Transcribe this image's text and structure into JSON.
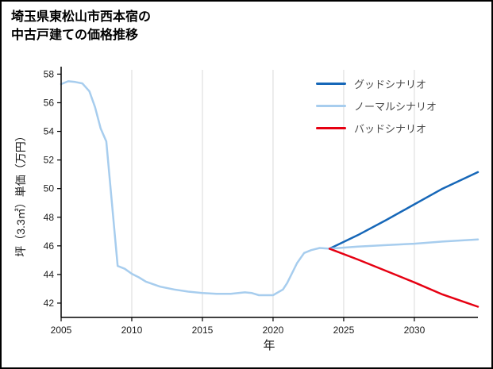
{
  "title": {
    "line1": "埼玉県東松山市西本宿の",
    "line2": "中古戸建ての価格推移"
  },
  "chart_data": {
    "type": "line",
    "title": "埼玉県東松山市西本宿の中古戸建ての価格推移",
    "xlabel": "年",
    "ylabel": "坪（3.3㎡）単価（万円）",
    "xlim": [
      2005,
      2034.5
    ],
    "ylim": [
      41.0,
      58.3
    ],
    "xticks": [
      2005,
      2010,
      2015,
      2020,
      2025,
      2030
    ],
    "yticks": [
      42,
      44,
      46,
      48,
      50,
      52,
      54,
      56,
      58
    ],
    "grid": "vertical-only",
    "grid_color": "#d9d9d9",
    "legend_position": "top-right-inside",
    "series": [
      {
        "key": "good",
        "name": "グッドシナリオ",
        "color": "#1667b8",
        "points": [
          [
            2024,
            45.8
          ],
          [
            2026,
            46.75
          ],
          [
            2028,
            47.8
          ],
          [
            2030,
            48.9
          ],
          [
            2032,
            50.0
          ],
          [
            2034.5,
            51.15
          ]
        ]
      },
      {
        "key": "normal",
        "name": "ノーマルシナリオ",
        "color": "#a7cdee",
        "points": [
          [
            2005,
            57.3
          ],
          [
            2005.5,
            57.5
          ],
          [
            2006,
            57.45
          ],
          [
            2006.5,
            57.35
          ],
          [
            2007,
            56.8
          ],
          [
            2007.4,
            55.7
          ],
          [
            2007.8,
            54.2
          ],
          [
            2008.2,
            53.3
          ],
          [
            2009,
            44.6
          ],
          [
            2009.5,
            44.4
          ],
          [
            2010,
            44.05
          ],
          [
            2010.5,
            43.8
          ],
          [
            2011,
            43.5
          ],
          [
            2012,
            43.15
          ],
          [
            2013,
            42.95
          ],
          [
            2014,
            42.8
          ],
          [
            2015,
            42.7
          ],
          [
            2016,
            42.65
          ],
          [
            2017,
            42.65
          ],
          [
            2018,
            42.75
          ],
          [
            2018.5,
            42.7
          ],
          [
            2019,
            42.55
          ],
          [
            2020,
            42.55
          ],
          [
            2020.7,
            42.95
          ],
          [
            2021,
            43.4
          ],
          [
            2021.7,
            44.8
          ],
          [
            2022.2,
            45.5
          ],
          [
            2022.7,
            45.7
          ],
          [
            2023.3,
            45.85
          ],
          [
            2024,
            45.8
          ],
          [
            2026,
            45.95
          ],
          [
            2028,
            46.05
          ],
          [
            2030,
            46.15
          ],
          [
            2032,
            46.3
          ],
          [
            2034.5,
            46.45
          ]
        ]
      },
      {
        "key": "bad",
        "name": "バッドシナリオ",
        "color": "#e60012",
        "points": [
          [
            2024,
            45.8
          ],
          [
            2026,
            45.05
          ],
          [
            2028,
            44.25
          ],
          [
            2030,
            43.45
          ],
          [
            2032,
            42.6
          ],
          [
            2034.5,
            41.75
          ]
        ]
      }
    ]
  }
}
